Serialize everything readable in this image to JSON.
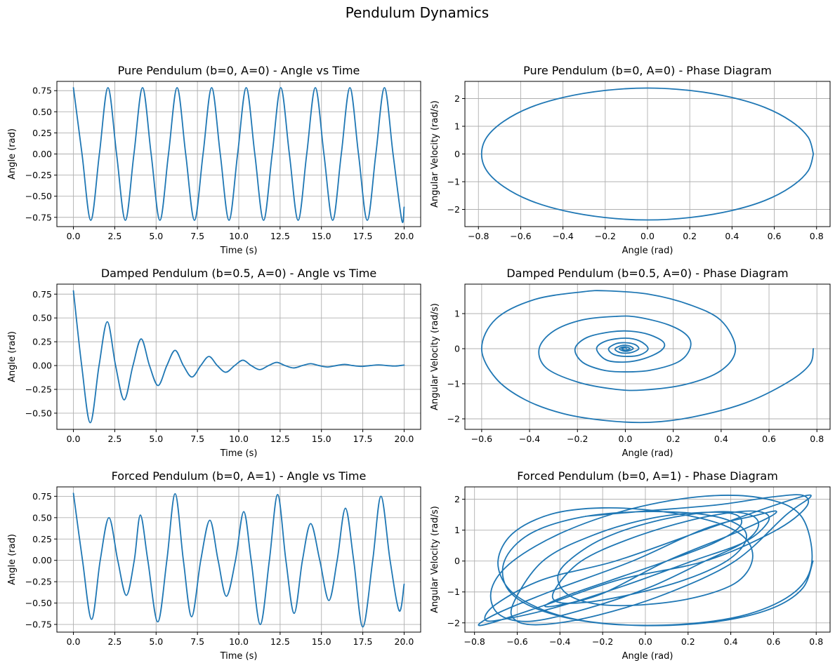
{
  "figure": {
    "suptitle": "Pendulum Dynamics",
    "line_color": "#1f77b4"
  },
  "chart_data": [
    {
      "id": "pure-time",
      "type": "line",
      "title": "Pure Pendulum (b=0, A=0) - Angle vs Time",
      "xlabel": "Time (s)",
      "ylabel": "Angle (rad)",
      "xlim": [
        -1.0,
        21.0
      ],
      "ylim": [
        -0.86,
        0.86
      ],
      "xticks": [
        0.0,
        2.5,
        5.0,
        7.5,
        10.0,
        12.5,
        15.0,
        17.5,
        20.0
      ],
      "xtick_labels": [
        "0.0",
        "2.5",
        "5.0",
        "7.5",
        "10.0",
        "12.5",
        "15.0",
        "17.5",
        "20.0"
      ],
      "yticks": [
        -0.75,
        -0.5,
        -0.25,
        0.0,
        0.25,
        0.5,
        0.75
      ],
      "ytick_labels": [
        "−0.75",
        "−0.50",
        "−0.25",
        "0.00",
        "0.25",
        "0.50",
        "0.75"
      ],
      "grid": true,
      "series": [
        {
          "x": [
            0.0,
            0.52,
            1.05,
            1.57,
            2.09,
            2.61,
            3.14,
            3.66,
            4.18,
            4.7,
            5.23,
            5.75,
            6.27,
            6.79,
            7.32,
            7.84,
            8.36,
            8.88,
            9.41,
            9.93,
            10.45,
            10.97,
            11.5,
            12.02,
            12.54,
            13.06,
            13.59,
            14.11,
            14.63,
            15.15,
            15.68,
            16.2,
            16.72,
            17.24,
            17.77,
            18.29,
            18.81,
            19.33,
            19.86,
            20.0
          ],
          "y": [
            0.785,
            0.0,
            -0.785,
            0.0,
            0.785,
            0.0,
            -0.785,
            0.0,
            0.785,
            0.0,
            -0.785,
            0.0,
            0.785,
            0.0,
            -0.785,
            0.0,
            0.785,
            0.0,
            -0.785,
            0.0,
            0.785,
            0.0,
            -0.785,
            0.0,
            0.785,
            0.0,
            -0.785,
            0.0,
            0.785,
            0.0,
            -0.785,
            0.0,
            0.785,
            0.0,
            -0.785,
            0.0,
            0.785,
            0.0,
            -0.785,
            -0.63
          ]
        }
      ]
    },
    {
      "id": "pure-phase",
      "type": "line",
      "title": "Pure Pendulum (b=0, A=0) - Phase Diagram",
      "xlabel": "Angle (rad)",
      "ylabel": "Angular Velocity (rad/s)",
      "xlim": [
        -0.864,
        0.864
      ],
      "ylim": [
        -2.62,
        2.62
      ],
      "xticks": [
        -0.8,
        -0.6,
        -0.4,
        -0.2,
        0.0,
        0.2,
        0.4,
        0.6,
        0.8
      ],
      "xtick_labels": [
        "−0.8",
        "−0.6",
        "−0.4",
        "−0.2",
        "0.0",
        "0.2",
        "0.4",
        "0.6",
        "0.8"
      ],
      "yticks": [
        -2,
        -1,
        0,
        1,
        2
      ],
      "ytick_labels": [
        "−2",
        "−1",
        "0",
        "1",
        "2"
      ],
      "grid": true,
      "series": [
        {
          "x": [
            0.785,
            0.76,
            0.68,
            0.555,
            0.393,
            0.203,
            0.0,
            -0.203,
            -0.393,
            -0.555,
            -0.68,
            -0.76,
            -0.785,
            -0.76,
            -0.68,
            -0.555,
            -0.393,
            -0.203,
            0.0,
            0.203,
            0.393,
            0.555,
            0.68,
            0.76,
            0.785
          ],
          "y": [
            0.0,
            -0.61,
            -1.18,
            -1.68,
            -2.05,
            -2.29,
            -2.38,
            -2.29,
            -2.05,
            -1.68,
            -1.18,
            -0.61,
            0.0,
            0.61,
            1.18,
            1.68,
            2.05,
            2.29,
            2.38,
            2.29,
            2.05,
            1.68,
            1.18,
            0.61,
            0.0
          ]
        }
      ]
    },
    {
      "id": "damped-time",
      "type": "line",
      "title": "Damped Pendulum (b=0.5, A=0) - Angle vs Time",
      "xlabel": "Time (s)",
      "ylabel": "Angle (rad)",
      "xlim": [
        -1.0,
        21.0
      ],
      "ylim": [
        -0.67,
        0.855
      ],
      "xticks": [
        0.0,
        2.5,
        5.0,
        7.5,
        10.0,
        12.5,
        15.0,
        17.5,
        20.0
      ],
      "xtick_labels": [
        "0.0",
        "2.5",
        "5.0",
        "7.5",
        "10.0",
        "12.5",
        "15.0",
        "17.5",
        "20.0"
      ],
      "yticks": [
        -0.5,
        -0.25,
        0.0,
        0.25,
        0.5,
        0.75
      ],
      "ytick_labels": [
        "−0.50",
        "−0.25",
        "0.00",
        "0.25",
        "0.50",
        "0.75"
      ],
      "grid": true,
      "series": [
        {
          "x": [
            0.0,
            0.5,
            1.02,
            1.55,
            2.05,
            2.55,
            3.07,
            3.6,
            4.1,
            4.6,
            5.12,
            5.65,
            6.15,
            6.65,
            7.17,
            7.7,
            8.2,
            8.7,
            9.22,
            9.75,
            10.25,
            10.75,
            11.27,
            11.8,
            12.3,
            12.8,
            13.32,
            13.85,
            14.35,
            14.85,
            15.37,
            15.9,
            16.4,
            16.9,
            17.42,
            17.95,
            18.45,
            18.95,
            19.47,
            20.0
          ],
          "y": [
            0.785,
            0.0,
            -0.6,
            0.0,
            0.46,
            0.0,
            -0.36,
            0.0,
            0.28,
            0.0,
            -0.21,
            0.0,
            0.16,
            0.0,
            -0.12,
            0.0,
            0.095,
            0.0,
            -0.07,
            0.0,
            0.056,
            0.0,
            -0.043,
            0.0,
            0.033,
            0.0,
            -0.025,
            0.0,
            0.02,
            0.0,
            -0.015,
            0.0,
            0.012,
            0.0,
            -0.009,
            0.0,
            0.007,
            0.0,
            -0.005,
            0.005
          ]
        }
      ]
    },
    {
      "id": "damped-phase",
      "type": "line",
      "title": "Damped Pendulum (b=0.5, A=0) - Phase Diagram",
      "xlabel": "Angle (rad)",
      "ylabel": "Angular Velocity (rad/s)",
      "xlim": [
        -0.67,
        0.855
      ],
      "ylim": [
        -2.3,
        1.84
      ],
      "xticks": [
        -0.6,
        -0.4,
        -0.2,
        0.0,
        0.2,
        0.4,
        0.6,
        0.8
      ],
      "xtick_labels": [
        "−0.6",
        "−0.4",
        "−0.2",
        "0.0",
        "0.2",
        "0.4",
        "0.6",
        "0.8"
      ],
      "yticks": [
        -2,
        -1,
        0,
        1
      ],
      "ytick_labels": [
        "−2",
        "−1",
        "0",
        "1"
      ],
      "grid": true,
      "series": [
        {
          "x": [
            0.785,
            0.77,
            0.68,
            0.5,
            0.28,
            0.1,
            -0.08,
            -0.26,
            -0.42,
            -0.54,
            -0.6,
            -0.54,
            -0.38,
            -0.18,
            -0.08,
            0.1,
            0.27,
            0.4,
            0.46,
            0.4,
            0.25,
            0.07,
            -0.05,
            -0.2,
            -0.33,
            -0.36,
            -0.3,
            -0.18,
            -0.04,
            0.05,
            0.18,
            0.26,
            0.27,
            0.22,
            0.1,
            -0.02,
            -0.1,
            -0.18,
            -0.21,
            -0.16,
            -0.06,
            0.02,
            0.1,
            0.16,
            0.15,
            0.08,
            0.0,
            -0.08,
            -0.12,
            -0.08,
            0.0,
            0.06,
            0.095,
            0.06,
            0.0,
            -0.05,
            -0.07,
            -0.04,
            0.0,
            0.04,
            0.056,
            0.03,
            0.0,
            -0.03,
            -0.043,
            -0.02,
            0.0,
            0.02,
            0.033,
            0.015,
            0.0,
            -0.015,
            -0.025,
            -0.012,
            0.0,
            0.01,
            0.02,
            0.008,
            0.0,
            -0.008,
            -0.015,
            -0.006,
            0.0,
            0.005
          ],
          "y": [
            0.0,
            -0.45,
            -0.95,
            -1.55,
            -1.95,
            -2.1,
            -2.05,
            -1.85,
            -1.45,
            -0.85,
            0.0,
            0.85,
            1.4,
            1.62,
            1.65,
            1.55,
            1.25,
            0.8,
            0.0,
            -0.62,
            -1.02,
            -1.18,
            -1.15,
            -0.95,
            -0.55,
            0.0,
            0.5,
            0.82,
            0.92,
            0.9,
            0.68,
            0.36,
            0.0,
            -0.38,
            -0.62,
            -0.66,
            -0.6,
            -0.38,
            0.0,
            0.32,
            0.48,
            0.5,
            0.4,
            0.18,
            -0.05,
            -0.28,
            -0.38,
            -0.32,
            0.0,
            0.22,
            0.3,
            0.22,
            0.0,
            -0.18,
            -0.22,
            -0.16,
            0.0,
            0.14,
            0.17,
            0.12,
            0.0,
            -0.1,
            -0.13,
            -0.09,
            0.0,
            0.08,
            0.1,
            0.07,
            0.0,
            -0.06,
            -0.075,
            -0.05,
            0.0,
            0.045,
            0.055,
            0.04,
            0.0,
            -0.035,
            -0.042,
            -0.03,
            0.0,
            0.025,
            0.03,
            0.0
          ]
        }
      ]
    },
    {
      "id": "forced-time",
      "type": "line",
      "title": "Forced Pendulum (b=0, A=1) - Angle vs Time",
      "xlabel": "Time (s)",
      "ylabel": "Angle (rad)",
      "xlim": [
        -1.0,
        21.0
      ],
      "ylim": [
        -0.84,
        0.86
      ],
      "xticks": [
        0.0,
        2.5,
        5.0,
        7.5,
        10.0,
        12.5,
        15.0,
        17.5,
        20.0
      ],
      "xtick_labels": [
        "0.0",
        "2.5",
        "5.0",
        "7.5",
        "10.0",
        "12.5",
        "15.0",
        "17.5",
        "20.0"
      ],
      "yticks": [
        -0.75,
        -0.5,
        -0.25,
        0.0,
        0.25,
        0.5,
        0.75
      ],
      "ytick_labels": [
        "−0.75",
        "−0.50",
        "−0.25",
        "0.00",
        "0.25",
        "0.50",
        "0.75"
      ],
      "grid": true,
      "series": [
        {
          "x": [
            0.0,
            0.55,
            1.1,
            1.62,
            2.15,
            2.68,
            3.2,
            3.68,
            4.05,
            4.5,
            5.1,
            5.65,
            6.15,
            6.65,
            7.15,
            7.7,
            8.25,
            8.75,
            9.25,
            9.8,
            10.3,
            10.75,
            11.3,
            11.85,
            12.35,
            12.85,
            13.35,
            13.85,
            14.35,
            14.9,
            15.45,
            15.95,
            16.45,
            16.95,
            17.5,
            18.1,
            18.6,
            19.15,
            19.7,
            20.0
          ],
          "y": [
            0.785,
            0.0,
            -0.69,
            0.0,
            0.5,
            0.0,
            -0.41,
            0.0,
            0.53,
            0.0,
            -0.72,
            0.0,
            0.78,
            0.0,
            -0.66,
            0.0,
            0.47,
            0.0,
            -0.42,
            0.0,
            0.57,
            0.0,
            -0.75,
            0.0,
            0.77,
            0.0,
            -0.62,
            0.0,
            0.43,
            0.0,
            -0.47,
            0.0,
            0.61,
            0.0,
            -0.78,
            0.0,
            0.75,
            0.0,
            -0.59,
            -0.28
          ]
        }
      ]
    },
    {
      "id": "forced-phase",
      "type": "line",
      "title": "Forced Pendulum (b=0, A=1) - Phase Diagram",
      "xlabel": "Angle (rad)",
      "ylabel": "Angular Velocity (rad/s)",
      "xlim": [
        -0.845,
        0.865
      ],
      "ylim": [
        -2.3,
        2.4
      ],
      "xticks": [
        -0.8,
        -0.6,
        -0.4,
        -0.2,
        0.0,
        0.2,
        0.4,
        0.6,
        0.8
      ],
      "xtick_labels": [
        "−0.8",
        "−0.6",
        "−0.4",
        "−0.2",
        "0.0",
        "0.2",
        "0.4",
        "0.6",
        "0.8"
      ],
      "yticks": [
        -2,
        -1,
        0,
        1,
        2
      ],
      "ytick_labels": [
        "−2",
        "−1",
        "0",
        "1",
        "2"
      ],
      "grid": true,
      "series": [
        {
          "x": [
            0.785,
            0.74,
            0.62,
            0.43,
            0.2,
            -0.05,
            -0.3,
            -0.5,
            -0.64,
            -0.69,
            -0.62,
            -0.44,
            -0.2,
            0.08,
            0.33,
            0.47,
            0.5,
            0.42,
            0.22,
            -0.02,
            -0.22,
            -0.36,
            -0.41,
            -0.36,
            -0.2,
            0.04,
            0.3,
            0.48,
            0.53,
            0.46,
            0.28,
            0.02,
            -0.28,
            -0.54,
            -0.69,
            -0.72,
            -0.62,
            -0.38,
            -0.06,
            0.28,
            0.56,
            0.73,
            0.78,
            0.7,
            0.48,
            0.16,
            -0.2,
            -0.48,
            -0.64,
            -0.66,
            -0.54,
            -0.3,
            0.0,
            0.28,
            0.44,
            0.47,
            0.38,
            0.18,
            -0.08,
            -0.3,
            -0.42,
            -0.42,
            -0.3,
            -0.08,
            0.2,
            0.44,
            0.56,
            0.57,
            0.46,
            0.22,
            -0.1,
            -0.42,
            -0.66,
            -0.75,
            -0.7,
            -0.48,
            -0.14,
            0.24,
            0.56,
            0.74,
            0.77,
            0.66,
            0.42,
            0.1,
            -0.22,
            -0.47,
            -0.6,
            -0.62,
            -0.48,
            -0.24,
            0.04,
            0.3,
            0.43,
            0.44,
            0.32,
            0.1,
            -0.16,
            -0.38,
            -0.47,
            -0.4,
            -0.2,
            0.1,
            0.4,
            0.58,
            0.61,
            0.52,
            0.28,
            -0.06,
            -0.42,
            -0.68,
            -0.78,
            -0.72,
            -0.48,
            -0.12,
            0.28,
            0.6,
            0.75,
            0.74,
            0.6,
            0.34,
            0.0,
            -0.28
          ],
          "y": [
            0.0,
            -0.85,
            -1.45,
            -1.85,
            -2.05,
            -2.08,
            -1.92,
            -1.52,
            -0.9,
            0.0,
            0.9,
            1.52,
            1.72,
            1.6,
            1.25,
            0.72,
            0.0,
            -0.72,
            -1.2,
            -1.42,
            -1.4,
            -1.1,
            -0.55,
            0.0,
            0.72,
            1.28,
            1.58,
            1.52,
            1.15,
            0.6,
            0.0,
            -0.85,
            -1.55,
            -1.95,
            -1.7,
            -0.9,
            0.0,
            0.95,
            1.7,
            2.1,
            2.02,
            1.45,
            0.0,
            -1.0,
            -1.72,
            -2.05,
            -2.02,
            -1.62,
            -0.95,
            0.0,
            0.88,
            1.42,
            1.6,
            1.5,
            1.15,
            0.65,
            0.0,
            -0.62,
            -1.1,
            -1.35,
            -1.3,
            -0.88,
            0.0,
            0.7,
            1.3,
            1.6,
            1.55,
            1.22,
            0.6,
            0.0,
            -0.8,
            -1.5,
            -1.88,
            -1.9,
            -1.4,
            -0.6,
            0.0,
            0.92,
            1.7,
            2.1,
            2.05,
            1.5,
            0.0,
            -1.05,
            -1.75,
            -2.05,
            -1.95,
            -1.4,
            0.0,
            0.85,
            1.4,
            1.58,
            1.48,
            1.1,
            0.58,
            0.0,
            -0.62,
            -1.15,
            -1.45,
            -1.42,
            -1.05,
            0.0,
            0.85,
            1.42,
            1.62,
            1.48,
            1.05,
            0.0,
            -0.92,
            -1.65,
            -2.05,
            -2.0,
            -1.45,
            -0.6,
            0.0,
            0.95,
            1.72,
            2.12,
            2.08,
            1.82,
            1.62,
            1.45
          ]
        }
      ]
    }
  ]
}
